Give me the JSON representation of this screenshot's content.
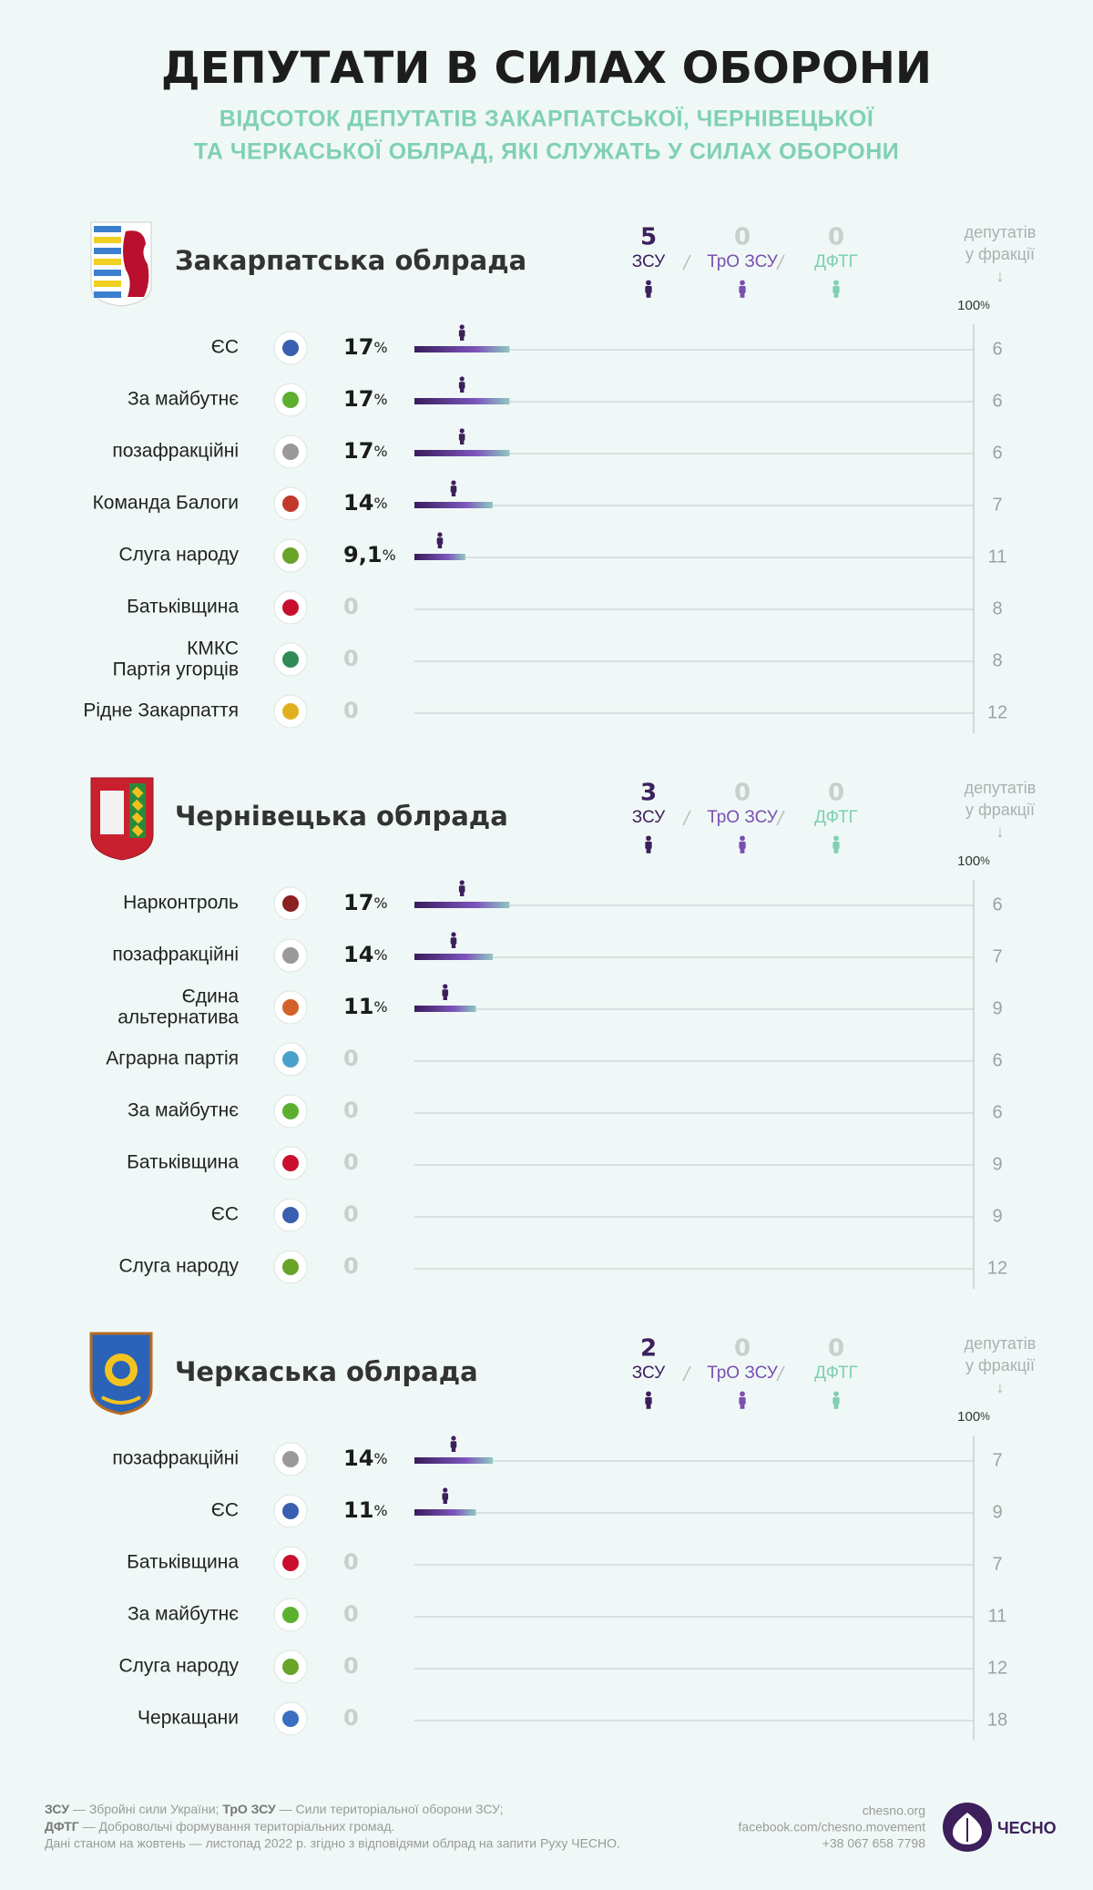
{
  "title": "ДЕПУТАТИ В СИЛАХ ОБОРОНИ",
  "subtitle": [
    "ВІДСОТОК ДЕПУТАТІВ ЗАКАРПАТСЬКОЇ, ЧЕРНІВЕЦЬКОЇ",
    "ТА ЧЕРКАСЬКОЇ ОБЛРАД, ЯКІ СЛУЖАТЬ У СИЛАХ ОБОРОНИ"
  ],
  "chart_data": [
    {
      "type": "bar",
      "title": "Закарпатська облрада",
      "summary": [
        {
          "label": "ЗСУ",
          "value": 5,
          "color": "#3d1f5c"
        },
        {
          "label": "ТрО ЗСУ",
          "value": 0,
          "color": "#7b4fb0"
        },
        {
          "label": "ДФТГ",
          "value": 0,
          "color": "#7fcfb0"
        }
      ],
      "count_label": [
        "депутатів",
        "у фракції"
      ],
      "xlim": [
        0,
        100
      ],
      "xticks": [
        {
          "value": 100,
          "label": "100%"
        }
      ],
      "categories": [
        "ЄС",
        "За майбутнє",
        "позафракційні",
        "Команда Балоги",
        "Слуга народу",
        "Батьківщина",
        "КМКС\nПартія угорців",
        "Рідне Закарпаття"
      ],
      "values": [
        17,
        17,
        17,
        14,
        9.1,
        0,
        0,
        0
      ],
      "value_labels": [
        "17%",
        "17%",
        "17%",
        "14%",
        "9,1%",
        "0",
        "0",
        "0"
      ],
      "faction_sizes": [
        6,
        6,
        6,
        7,
        11,
        8,
        8,
        12
      ],
      "logo_colors": [
        "#3a5fb0",
        "#5bb030",
        "#999999",
        "#c0392b",
        "#6aa32a",
        "#c8102e",
        "#2e8b57",
        "#e0b020"
      ]
    },
    {
      "type": "bar",
      "title": "Чернівецька облрада",
      "summary": [
        {
          "label": "ЗСУ",
          "value": 3,
          "color": "#3d1f5c"
        },
        {
          "label": "ТрО ЗСУ",
          "value": 0,
          "color": "#7b4fb0"
        },
        {
          "label": "ДФТГ",
          "value": 0,
          "color": "#7fcfb0"
        }
      ],
      "count_label": [
        "депутатів",
        "у фракції"
      ],
      "xlim": [
        0,
        100
      ],
      "xticks": [
        {
          "value": 100,
          "label": "100%"
        }
      ],
      "categories": [
        "Нарконтроль",
        "позафракційні",
        "Єдина\nальтернатива",
        "Аграрна партія",
        "За майбутнє",
        "Батьківщина",
        "ЄС",
        "Слуга народу"
      ],
      "values": [
        17,
        14,
        11,
        0,
        0,
        0,
        0,
        0
      ],
      "value_labels": [
        "17%",
        "14%",
        "11%",
        "0",
        "0",
        "0",
        "0",
        "0"
      ],
      "faction_sizes": [
        6,
        7,
        9,
        6,
        6,
        9,
        9,
        12
      ],
      "logo_colors": [
        "#8b2020",
        "#999999",
        "#d2602a",
        "#4aa0c8",
        "#5bb030",
        "#c8102e",
        "#3a5fb0",
        "#6aa32a"
      ]
    },
    {
      "type": "bar",
      "title": "Черкаська облрада",
      "summary": [
        {
          "label": "ЗСУ",
          "value": 2,
          "color": "#3d1f5c"
        },
        {
          "label": "ТрО ЗСУ",
          "value": 0,
          "color": "#7b4fb0"
        },
        {
          "label": "ДФТГ",
          "value": 0,
          "color": "#7fcfb0"
        }
      ],
      "count_label": [
        "депутатів",
        "у фракції"
      ],
      "xlim": [
        0,
        100
      ],
      "xticks": [
        {
          "value": 100,
          "label": "100%"
        }
      ],
      "categories": [
        "позафракційні",
        "ЄС",
        "Батьківщина",
        "За майбутнє",
        "Слуга народу",
        "Черкащани"
      ],
      "values": [
        14,
        11,
        0,
        0,
        0,
        0
      ],
      "value_labels": [
        "14%",
        "11%",
        "0",
        "0",
        "0",
        "0"
      ],
      "faction_sizes": [
        7,
        9,
        7,
        11,
        12,
        18
      ],
      "logo_colors": [
        "#999999",
        "#3a5fb0",
        "#c8102e",
        "#5bb030",
        "#6aa32a",
        "#3a6fc0"
      ]
    }
  ],
  "footer": {
    "legend": [
      {
        "term": "ЗСУ",
        "definition": " — Збройні сили України; "
      },
      {
        "term": "ТрО ЗСУ",
        "definition": " — Сили територіальної оборони ЗСУ;"
      },
      {
        "term": "ДФТГ",
        "definition": " — Добровольчі формування територіальних громад."
      }
    ],
    "note": "Дані станом на жовтень — листопад 2022 р. згідно з відповідями облрад на запити Руху ЧЕСНО.",
    "contacts": [
      "chesno.org",
      "facebook.com/chesno.movement",
      "+38 067 658 7798"
    ],
    "brand": "ЧЕСНО"
  }
}
